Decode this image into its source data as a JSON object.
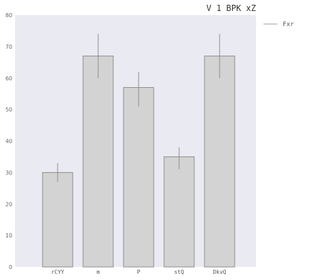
{
  "chart_data": {
    "type": "bar",
    "title": "V 1 BPK xZ",
    "xlabel": "",
    "ylabel": "",
    "categories": [
      "rCYY",
      "m",
      "P",
      "stQ",
      "DkvQ"
    ],
    "series": [
      {
        "name": "Fxr",
        "values": [
          30,
          67,
          57,
          35,
          67
        ],
        "error_low": [
          27,
          60,
          51,
          31,
          60
        ],
        "error_high": [
          33,
          74,
          62,
          38,
          74
        ]
      }
    ],
    "ylim": [
      0,
      80
    ],
    "yticks": [
      0,
      10,
      20,
      30,
      40,
      50,
      60,
      70,
      80
    ],
    "grid": false,
    "legend_position": "outside-right",
    "colors": {
      "plot_background": "#eaeaf2",
      "bar_fill": "#d3d3d3",
      "bar_edge": "#8c8c8c",
      "error_bar": "#8c8c8c",
      "legend_line": "#b0b0b0"
    }
  }
}
